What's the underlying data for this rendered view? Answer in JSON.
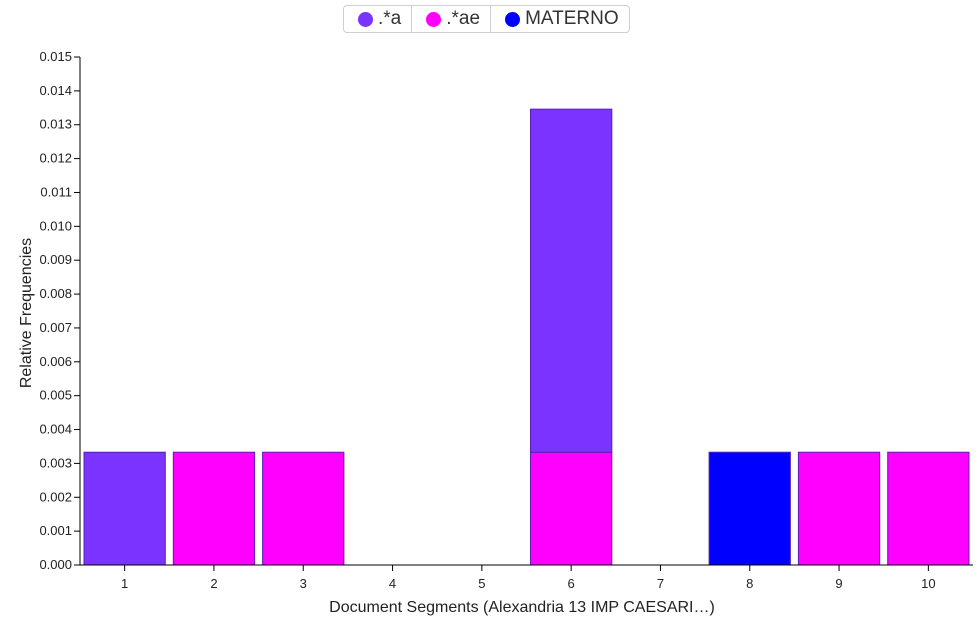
{
  "chart_data": {
    "type": "bar",
    "stacked": true,
    "categories": [
      "1",
      "2",
      "3",
      "4",
      "5",
      "6",
      "7",
      "8",
      "9",
      "10"
    ],
    "series": [
      {
        "name": ".*ae",
        "color": "#ff00ff",
        "values": [
          0,
          0.00333,
          0.00333,
          0,
          0,
          0.00333,
          0,
          0,
          0.00333,
          0.00333
        ]
      },
      {
        "name": ".*a",
        "color": "#7b33ff",
        "values": [
          0.00333,
          0,
          0,
          0,
          0,
          0.01013,
          0,
          0,
          0,
          0
        ]
      },
      {
        "name": "MATERNO",
        "color": "#0000ff",
        "values": [
          0,
          0,
          0,
          0,
          0,
          0,
          0,
          0.00333,
          0,
          0
        ]
      }
    ],
    "title": "",
    "xlabel": "Document Segments (Alexandria 13 IMP CAESARI…)",
    "ylabel": "Relative Frequencies",
    "ylim": [
      0,
      0.015
    ],
    "yticks": [
      "0.000",
      "0.001",
      "0.002",
      "0.003",
      "0.004",
      "0.005",
      "0.006",
      "0.007",
      "0.008",
      "0.009",
      "0.010",
      "0.011",
      "0.012",
      "0.013",
      "0.014",
      "0.015"
    ],
    "grid": false,
    "legend_position": "top-center"
  },
  "legend": {
    "items": [
      {
        "label": ".*a",
        "color": "#7b33ff"
      },
      {
        "label": ".*ae",
        "color": "#ff00ff"
      },
      {
        "label": "MATERNO",
        "color": "#0000ff"
      }
    ]
  }
}
